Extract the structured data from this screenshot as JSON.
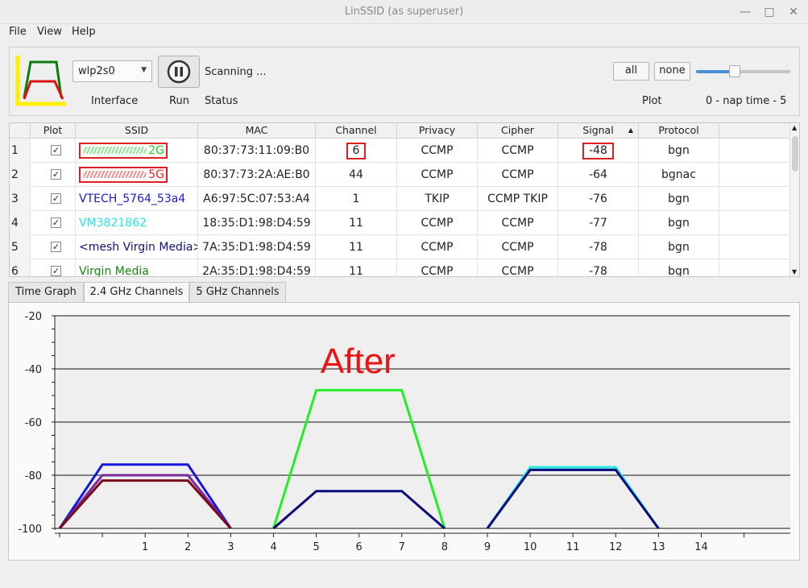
{
  "window": {
    "title": "LinSSID (as superuser)"
  },
  "menu": [
    "File",
    "View",
    "Help"
  ],
  "toolbar": {
    "interface_value": "wlp2s0",
    "interface_label": "Interface",
    "run_label": "Run",
    "status_text": "Scanning ...",
    "status_label": "Status",
    "all_button": "all",
    "none_button": "none",
    "plot_label": "Plot",
    "nap_label": "0 - nap time - 5",
    "nap_value": 2
  },
  "table": {
    "columns": [
      "Plot",
      "SSID",
      "MAC",
      "Channel",
      "Privacy",
      "Cipher",
      "Signal",
      "Protocol"
    ],
    "rows": [
      {
        "num": "1",
        "checked": true,
        "ssid": "2G",
        "ssid_color": "#22cc22",
        "mac": "80:37:73:11:09:B0",
        "channel": "6",
        "privacy": "CCMP",
        "cipher": "CCMP",
        "signal": "-48",
        "protocol": "bgn"
      },
      {
        "num": "2",
        "checked": true,
        "ssid": "5G",
        "ssid_color": "#dd2222",
        "mac": "80:37:73:2A:AE:B0",
        "channel": "44",
        "privacy": "CCMP",
        "cipher": "CCMP",
        "signal": "-64",
        "protocol": "bgnac"
      },
      {
        "num": "3",
        "checked": true,
        "ssid": "VTECH_5764_53a4",
        "ssid_color": "#1a1acc",
        "mac": "A6:97:5C:07:53:A4",
        "channel": "1",
        "privacy": "TKIP",
        "cipher": "CCMP TKIP",
        "signal": "-76",
        "protocol": "bgn"
      },
      {
        "num": "4",
        "checked": true,
        "ssid": "VM3821862",
        "ssid_color": "#22e5e5",
        "mac": "18:35:D1:98:D4:59",
        "channel": "11",
        "privacy": "CCMP",
        "cipher": "CCMP",
        "signal": "-77",
        "protocol": "bgn"
      },
      {
        "num": "5",
        "checked": true,
        "ssid": "<mesh Virgin Media>",
        "ssid_color": "#101080",
        "mac": "7A:35:D1:98:D4:59",
        "channel": "11",
        "privacy": "CCMP",
        "cipher": "CCMP",
        "signal": "-78",
        "protocol": "bgn"
      },
      {
        "num": "6",
        "checked": true,
        "ssid": "Virgin Media",
        "ssid_color": "#118811",
        "mac": "2A:35:D1:98:D4:59",
        "channel": "11",
        "privacy": "CCMP",
        "cipher": "CCMP",
        "signal": "-78",
        "protocol": "bgn"
      }
    ]
  },
  "tabs": [
    "Time Graph",
    "2.4 GHz Channels",
    "5 GHz Channels"
  ],
  "active_tab": "2.4 GHz Channels",
  "annotation": "After",
  "chart_data": {
    "type": "line",
    "ylim": [
      -100,
      -20
    ],
    "y_ticks": [
      "-20",
      "-40",
      "-60",
      "-80",
      "-100"
    ],
    "x_ticks": [
      "1",
      "2",
      "3",
      "4",
      "5",
      "6",
      "7",
      "8",
      "9",
      "10",
      "11",
      "12",
      "13",
      "14"
    ],
    "xlim": [
      -1,
      15.5
    ],
    "grid": "horizontal",
    "series": [
      {
        "color": "#22ee22",
        "points": [
          [
            4,
            -100
          ],
          [
            5,
            -48
          ],
          [
            7,
            -48
          ],
          [
            8,
            -100
          ]
        ]
      },
      {
        "color": "#0a0a7a",
        "points": [
          [
            4,
            -100
          ],
          [
            5,
            -86
          ],
          [
            7,
            -86
          ],
          [
            8,
            -100
          ]
        ]
      },
      {
        "color": "#1515dd",
        "points": [
          [
            -1,
            -100
          ],
          [
            0,
            -76
          ],
          [
            2,
            -76
          ],
          [
            3,
            -100
          ]
        ]
      },
      {
        "color": "#7a2a9a",
        "points": [
          [
            -1,
            -100
          ],
          [
            0,
            -80
          ],
          [
            2,
            -80
          ],
          [
            3,
            -100
          ]
        ]
      },
      {
        "color": "#7a0a1a",
        "points": [
          [
            -1,
            -100
          ],
          [
            0,
            -82
          ],
          [
            2,
            -82
          ],
          [
            3,
            -100
          ]
        ]
      },
      {
        "color": "#22e5e5",
        "points": [
          [
            9,
            -100
          ],
          [
            10,
            -77
          ],
          [
            12,
            -77
          ],
          [
            13,
            -100
          ]
        ]
      },
      {
        "color": "#0a0a7a",
        "points": [
          [
            9,
            -100
          ],
          [
            10,
            -78
          ],
          [
            12,
            -78
          ],
          [
            13,
            -100
          ]
        ]
      }
    ]
  }
}
